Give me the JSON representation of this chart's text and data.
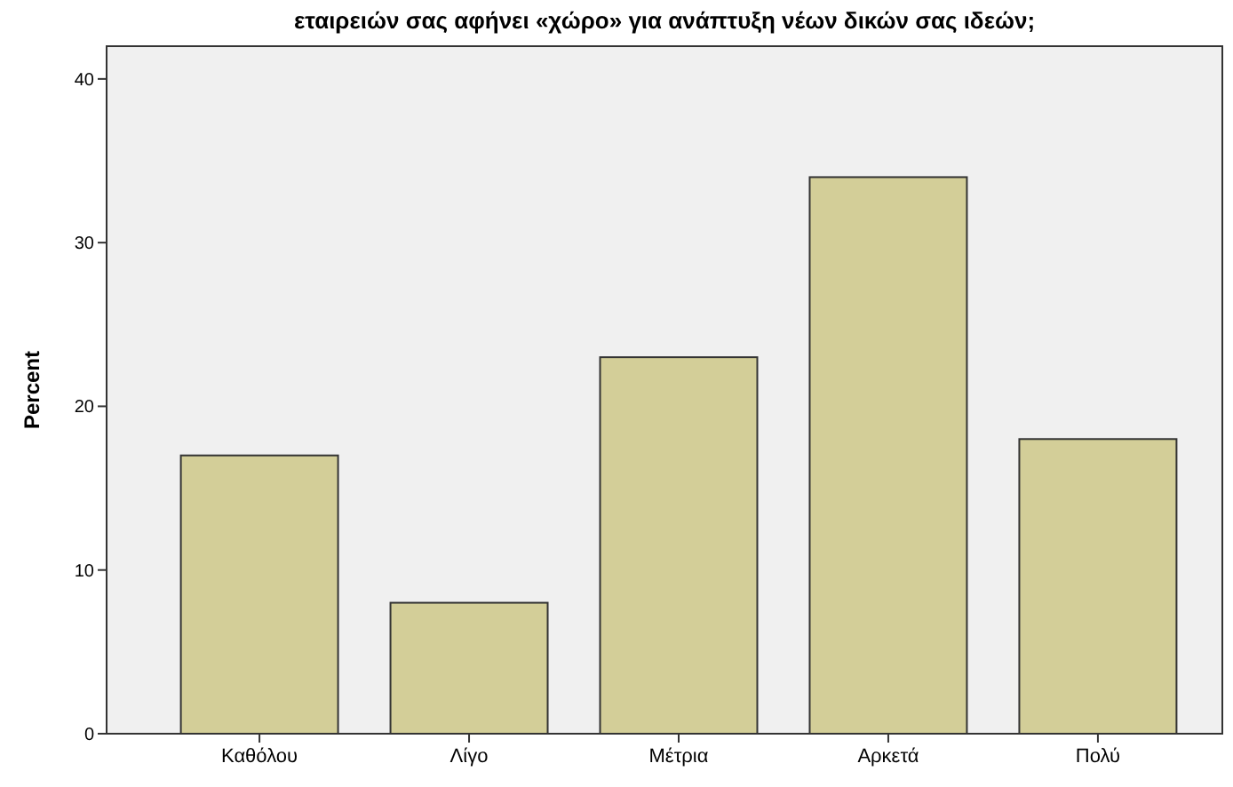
{
  "chart_data": {
    "type": "bar",
    "title": "εταιρειών σας αφήνει «χώρο» για ανάπτυξη νέων δικών σας ιδεών;",
    "ylabel": "Percent",
    "categories": [
      "Καθόλου",
      "Λίγο",
      "Μέτρια",
      "Αρκετά",
      "Πολύ"
    ],
    "values": [
      17,
      8,
      23,
      34,
      18
    ],
    "color": "#d3ce98",
    "ylim": [
      0,
      42
    ],
    "yticks": [
      0,
      10,
      20,
      30,
      40
    ],
    "grid": false
  }
}
